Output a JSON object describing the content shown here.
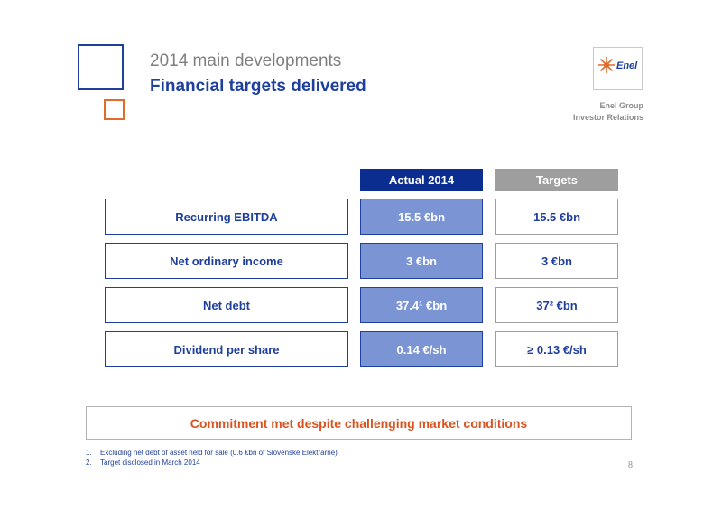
{
  "header": {
    "supertitle": "2014 main developments",
    "title": "Financial targets delivered",
    "logo_text": "Enel",
    "group_line1": "Enel Group",
    "group_line2": "Investor Relations"
  },
  "table": {
    "col_actual": "Actual 2014",
    "col_targets": "Targets",
    "rows": [
      {
        "label": "Recurring EBITDA",
        "actual": "15.5 €bn",
        "target": "15.5 €bn"
      },
      {
        "label": "Net ordinary income",
        "actual": "3 €bn",
        "target": "3 €bn"
      },
      {
        "label": "Net debt",
        "actual": "37.4¹ €bn",
        "target": "37² €bn"
      },
      {
        "label": "Dividend per share",
        "actual": "0.14 €/sh",
        "target": "≥ 0.13 €/sh"
      }
    ]
  },
  "commitment": "Commitment met despite challenging market conditions",
  "footnotes": [
    {
      "num": "1.",
      "text": "Excluding net debt of asset held for sale (0.6 €bn of Slovenske Elektrarne)"
    },
    {
      "num": "2.",
      "text": "Target disclosed in March 2014"
    }
  ],
  "page_number": "8",
  "colors": {
    "brand_blue": "#1f3f9c",
    "accent_orange": "#e06b2d",
    "actual_fill": "#7b95d4"
  }
}
